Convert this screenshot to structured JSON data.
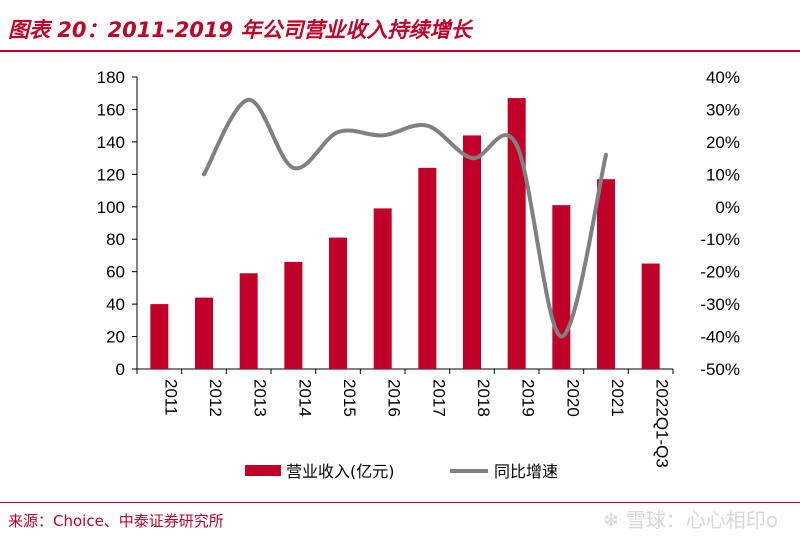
{
  "title": "图表 20：2011-2019 年公司营业收入持续增长",
  "source": "来源：Choice、中泰证券研究所",
  "watermark": "雪球：心心相印o",
  "chart_data": {
    "type": "bar+line",
    "categories": [
      "2011",
      "2012",
      "2013",
      "2014",
      "2015",
      "2016",
      "2017",
      "2018",
      "2019",
      "2020",
      "2021",
      "2022Q1-Q3"
    ],
    "series": [
      {
        "name": "营业收入(亿元)",
        "type": "bar",
        "axis": "left",
        "color": "#c00028",
        "values": [
          40,
          44,
          59,
          66,
          81,
          99,
          124,
          144,
          167,
          101,
          117,
          65
        ]
      },
      {
        "name": "同比增速",
        "type": "line",
        "axis": "right",
        "color": "#808080",
        "values": [
          null,
          10,
          33,
          12,
          23,
          22,
          25,
          15,
          19,
          -40,
          16,
          null
        ]
      }
    ],
    "left_axis": {
      "ylim": [
        0,
        180
      ],
      "ticks": [
        "0",
        "20",
        "40",
        "60",
        "80",
        "100",
        "120",
        "140",
        "160",
        "180"
      ]
    },
    "right_axis": {
      "ylim": [
        -50,
        40
      ],
      "ticks": [
        "-50%",
        "-40%",
        "-30%",
        "-20%",
        "-10%",
        "0%",
        "10%",
        "20%",
        "30%",
        "40%"
      ]
    },
    "legend_position": "bottom",
    "grid": false
  }
}
